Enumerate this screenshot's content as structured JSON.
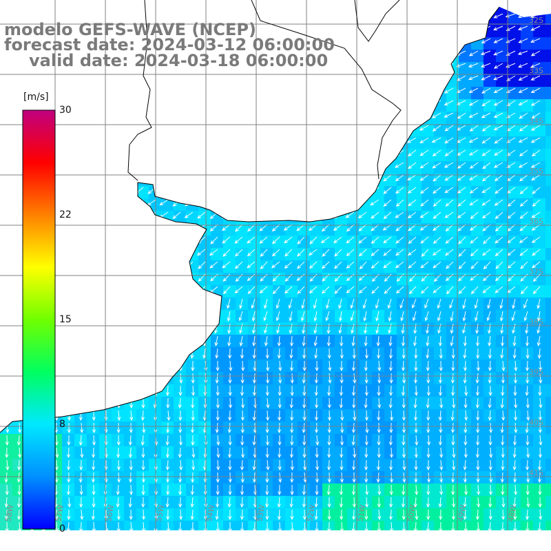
{
  "title": {
    "model": "modelo GEFS-WAVE (NCEP)",
    "forecast": "forecast date: 2024-03-12 06:00:00",
    "valid": "valid date: 2024-03-18 06:00:00"
  },
  "colorbar": {
    "unit": "[m/s]",
    "min": 0,
    "max": 30,
    "ticks": [
      "30",
      "22",
      "15",
      "8",
      "0"
    ],
    "colors": [
      "#0000ff",
      "#0090ff",
      "#00e8ff",
      "#00ff60",
      "#70ff00",
      "#ffff00",
      "#ff8000",
      "#ff0000",
      "#c00080"
    ]
  },
  "latitude_labels": [
    "32S",
    "33S",
    "34S",
    "35S",
    "36S",
    "37S",
    "38S",
    "39S",
    "40S",
    "41S"
  ],
  "longitude_labels": [
    "58W",
    "57W",
    "56W",
    "55W",
    "54W",
    "53W",
    "52W",
    "51W",
    "50W",
    "49W",
    "48W"
  ],
  "colors": {
    "land": "#ffffff",
    "coast": "#000000",
    "grid": "#808080",
    "arrow": "#ffffff",
    "title": "#7a7a7a"
  }
}
